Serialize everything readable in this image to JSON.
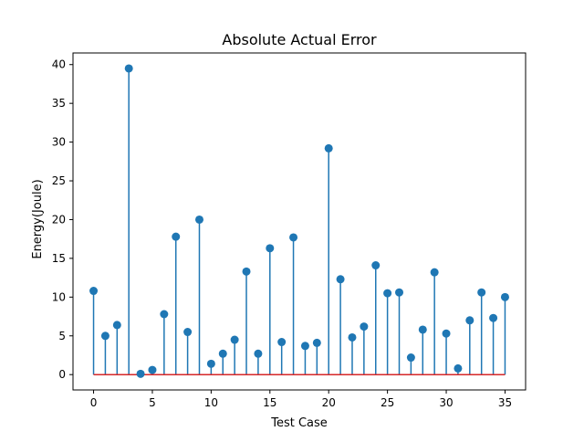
{
  "chart_data": {
    "type": "stem",
    "title": "Absolute Actual Error",
    "xlabel": "Test Case",
    "ylabel": "Energy(Joule)",
    "xlim": [
      -1.75,
      36.75
    ],
    "ylim": [
      -1.98,
      41.5
    ],
    "xticks": [
      0,
      5,
      10,
      15,
      20,
      25,
      30,
      35
    ],
    "yticks": [
      0,
      5,
      10,
      15,
      20,
      25,
      30,
      35,
      40
    ],
    "grid": false,
    "colors": {
      "stem": "#1f77b4",
      "marker": "#1f77b4",
      "baseline": "#d62728",
      "axes": "#000000"
    },
    "series": [
      {
        "x": [
          0,
          1,
          2,
          3,
          4,
          5,
          6,
          7,
          8,
          9,
          10,
          11,
          12,
          13,
          14,
          15,
          16,
          17,
          18,
          19,
          20,
          21,
          22,
          23,
          24,
          25,
          26,
          27,
          28,
          29,
          30,
          31,
          32,
          33,
          34,
          35
        ],
        "values": [
          10.8,
          5.0,
          6.4,
          39.5,
          0.1,
          0.6,
          7.8,
          17.8,
          5.5,
          20.0,
          1.4,
          2.7,
          4.5,
          13.3,
          2.7,
          16.3,
          4.2,
          17.7,
          3.7,
          4.1,
          29.2,
          12.3,
          4.8,
          6.2,
          14.1,
          10.5,
          10.6,
          2.2,
          5.8,
          13.2,
          5.3,
          0.8,
          7.0,
          10.6,
          7.3,
          10.0
        ]
      }
    ]
  }
}
